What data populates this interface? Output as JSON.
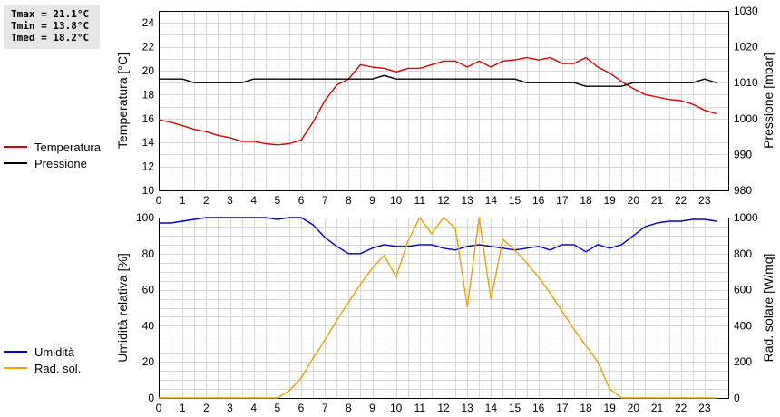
{
  "stats": {
    "tmax": "Tmax = 21.1°C",
    "tmin": "Tmin = 13.8°C",
    "tmed": "Tmed = 18.2°C"
  },
  "legend_top": [
    {
      "label": "Temperatura",
      "color": "#dd0000"
    },
    {
      "label": "Pressione",
      "color": "#000000"
    }
  ],
  "legend_bottom": [
    {
      "label": "Umidità",
      "color": "#0000cc"
    },
    {
      "label": "Rad. sol.",
      "color": "#f0a000"
    }
  ],
  "chart_data": [
    {
      "type": "line",
      "title": "",
      "xlabel": "",
      "ylabel": "Temperatura [°C]",
      "y2label": "Pressione [mbar]",
      "xlim": [
        0,
        24
      ],
      "xticks": [
        0,
        1,
        2,
        3,
        4,
        5,
        6,
        7,
        8,
        9,
        10,
        11,
        12,
        13,
        14,
        15,
        16,
        17,
        18,
        19,
        20,
        21,
        22,
        23
      ],
      "ylim": [
        10,
        25
      ],
      "yticks": [
        10,
        12,
        14,
        16,
        18,
        20,
        22,
        24
      ],
      "y2lim": [
        980,
        1030
      ],
      "y2ticks": [
        980,
        990,
        1000,
        1010,
        1020,
        1030
      ],
      "grid": true,
      "series": [
        {
          "name": "Temperatura",
          "axis": "left",
          "color": "#dd0000",
          "x": [
            0,
            0.5,
            1,
            1.5,
            2,
            2.5,
            3,
            3.5,
            4,
            4.5,
            5,
            5.5,
            6,
            6.5,
            7,
            7.5,
            8,
            8.5,
            9,
            9.5,
            10,
            10.5,
            11,
            11.5,
            12,
            12.5,
            13,
            13.5,
            14,
            14.5,
            15,
            15.5,
            16,
            16.5,
            17,
            17.5,
            18,
            18.5,
            19,
            19.5,
            20,
            20.5,
            21,
            21.5,
            22,
            22.5,
            23,
            23.5
          ],
          "y": [
            15.9,
            15.7,
            15.4,
            15.1,
            14.9,
            14.6,
            14.4,
            14.1,
            14.1,
            13.9,
            13.8,
            13.9,
            14.2,
            15.7,
            17.5,
            18.8,
            19.3,
            20.5,
            20.3,
            20.2,
            19.9,
            20.2,
            20.2,
            20.5,
            20.8,
            20.8,
            20.3,
            20.8,
            20.3,
            20.8,
            20.9,
            21.1,
            20.9,
            21.1,
            20.6,
            20.6,
            21.1,
            20.3,
            19.8,
            19.1,
            18.5,
            18.0,
            17.8,
            17.6,
            17.5,
            17.2,
            16.7,
            16.4
          ]
        },
        {
          "name": "Pressione",
          "axis": "right",
          "color": "#000000",
          "x": [
            0,
            1,
            1.5,
            2,
            2.5,
            3,
            3.5,
            4,
            4.5,
            5,
            5.5,
            6,
            6.5,
            7,
            7.5,
            8,
            8.5,
            9,
            9.5,
            10,
            10.5,
            11,
            11.5,
            12,
            12.5,
            13,
            13.5,
            14,
            14.5,
            15,
            15.5,
            16,
            16.5,
            17,
            17.5,
            18,
            18.5,
            19,
            19.5,
            20,
            20.5,
            21,
            21.5,
            22,
            22.5,
            23,
            23.5
          ],
          "y": [
            1011,
            1011,
            1010,
            1010,
            1010,
            1010,
            1010,
            1011,
            1011,
            1011,
            1011,
            1011,
            1011,
            1011,
            1011,
            1011,
            1011,
            1011,
            1012,
            1011,
            1011,
            1011,
            1011,
            1011,
            1011,
            1011,
            1011,
            1011,
            1011,
            1011,
            1010,
            1010,
            1010,
            1010,
            1010,
            1009,
            1009,
            1009,
            1009,
            1010,
            1010,
            1010,
            1010,
            1010,
            1010,
            1011,
            1010
          ]
        }
      ]
    },
    {
      "type": "line",
      "title": "",
      "xlabel": "",
      "ylabel": "Umidità relativa [%]",
      "y2label": "Rad. solare [W/mq]",
      "xlim": [
        0,
        24
      ],
      "xticks": [
        0,
        1,
        2,
        3,
        4,
        5,
        6,
        7,
        8,
        9,
        10,
        11,
        12,
        13,
        14,
        15,
        16,
        17,
        18,
        19,
        20,
        21,
        22,
        23
      ],
      "ylim": [
        0,
        100
      ],
      "yticks": [
        0,
        20,
        40,
        60,
        80,
        100
      ],
      "y2lim": [
        0,
        1000
      ],
      "y2ticks": [
        0,
        200,
        400,
        600,
        800,
        1000
      ],
      "grid": true,
      "series": [
        {
          "name": "Umidità",
          "axis": "left",
          "color": "#0000cc",
          "x": [
            0,
            0.5,
            1,
            1.5,
            2,
            2.5,
            3,
            3.5,
            4,
            4.5,
            5,
            5.5,
            6,
            6.5,
            7,
            7.5,
            8,
            8.5,
            9,
            9.5,
            10,
            10.5,
            11,
            11.5,
            12,
            12.5,
            13,
            13.5,
            14,
            14.5,
            15,
            15.5,
            16,
            16.5,
            17,
            17.5,
            18,
            18.5,
            19,
            19.5,
            20,
            20.5,
            21,
            21.5,
            22,
            22.5,
            23,
            23.5
          ],
          "y": [
            97,
            97,
            98,
            99,
            100,
            100,
            100,
            100,
            100,
            100,
            99,
            100,
            100,
            96,
            89,
            84,
            80,
            80,
            83,
            85,
            84,
            84,
            85,
            85,
            83,
            82,
            84,
            85,
            84,
            83,
            82,
            83,
            84,
            82,
            85,
            85,
            81,
            85,
            83,
            85,
            90,
            95,
            97,
            98,
            98,
            99,
            99,
            98
          ]
        },
        {
          "name": "Rad. sol.",
          "axis": "right",
          "color": "#f0a000",
          "x": [
            0,
            0.5,
            1,
            1.5,
            2,
            2.5,
            3,
            3.5,
            4,
            4.5,
            5,
            5.5,
            6,
            6.5,
            7,
            7.5,
            8,
            8.5,
            9,
            9.5,
            10,
            10.5,
            11,
            11.5,
            12,
            12.5,
            13,
            13.5,
            14,
            14.5,
            15,
            15.5,
            16,
            16.5,
            17,
            17.5,
            18,
            18.5,
            19,
            19.5,
            20,
            20.5,
            21,
            21.5,
            22,
            22.5,
            23,
            23.5
          ],
          "y": [
            0,
            0,
            0,
            0,
            0,
            0,
            0,
            0,
            0,
            0,
            0,
            40,
            110,
            220,
            320,
            430,
            530,
            630,
            720,
            790,
            670,
            870,
            1010,
            910,
            1010,
            940,
            505,
            1010,
            545,
            880,
            820,
            750,
            670,
            580,
            480,
            380,
            290,
            200,
            50,
            0,
            0,
            0,
            0,
            0,
            0,
            0,
            0,
            0
          ]
        }
      ]
    }
  ]
}
